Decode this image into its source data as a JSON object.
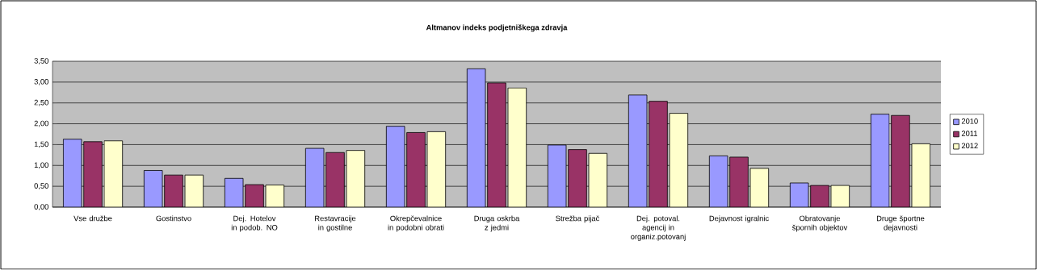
{
  "chart_data": {
    "type": "bar",
    "title": "Altmanov indeks podjetniškega zdravja",
    "categories": [
      "Vse družbe",
      "Gostinstvo",
      "Dej. Hotelov in podob. NO",
      "Restavracije in gostilne",
      "Okrepčevalnice in podobni obrati",
      "Druga oskrba z jedmi",
      "Strežba pijač",
      "Dej. potoval. agencij in organiz.potovanj",
      "Dejavnost igralnic",
      "Obratovanje špornih objektov",
      "Druge športne dejavnosti"
    ],
    "series": [
      {
        "name": "2010",
        "color": "#9999ff",
        "values": [
          1.63,
          0.88,
          0.69,
          1.41,
          1.94,
          3.32,
          1.49,
          2.69,
          1.23,
          0.58,
          2.23
        ]
      },
      {
        "name": "2011",
        "color": "#993366",
        "values": [
          1.57,
          0.77,
          0.54,
          1.31,
          1.79,
          2.98,
          1.38,
          2.54,
          1.2,
          0.52,
          2.2
        ]
      },
      {
        "name": "2012",
        "color": "#ffffcc",
        "values": [
          1.59,
          0.77,
          0.53,
          1.36,
          1.81,
          2.86,
          1.29,
          2.25,
          0.93,
          0.52,
          1.52
        ]
      }
    ],
    "ylim": [
      0,
      3.5
    ],
    "yticks": [
      {
        "value": 0,
        "label": "0,00"
      },
      {
        "value": 0.5,
        "label": "0,50"
      },
      {
        "value": 1,
        "label": "1,00"
      },
      {
        "value": 1.5,
        "label": "1,50"
      },
      {
        "value": 2,
        "label": "2,00"
      },
      {
        "value": 2.5,
        "label": "2,50"
      },
      {
        "value": 3,
        "label": "3,00"
      },
      {
        "value": 3.5,
        "label": "3,50"
      }
    ],
    "grid": "y",
    "legend": "right"
  }
}
